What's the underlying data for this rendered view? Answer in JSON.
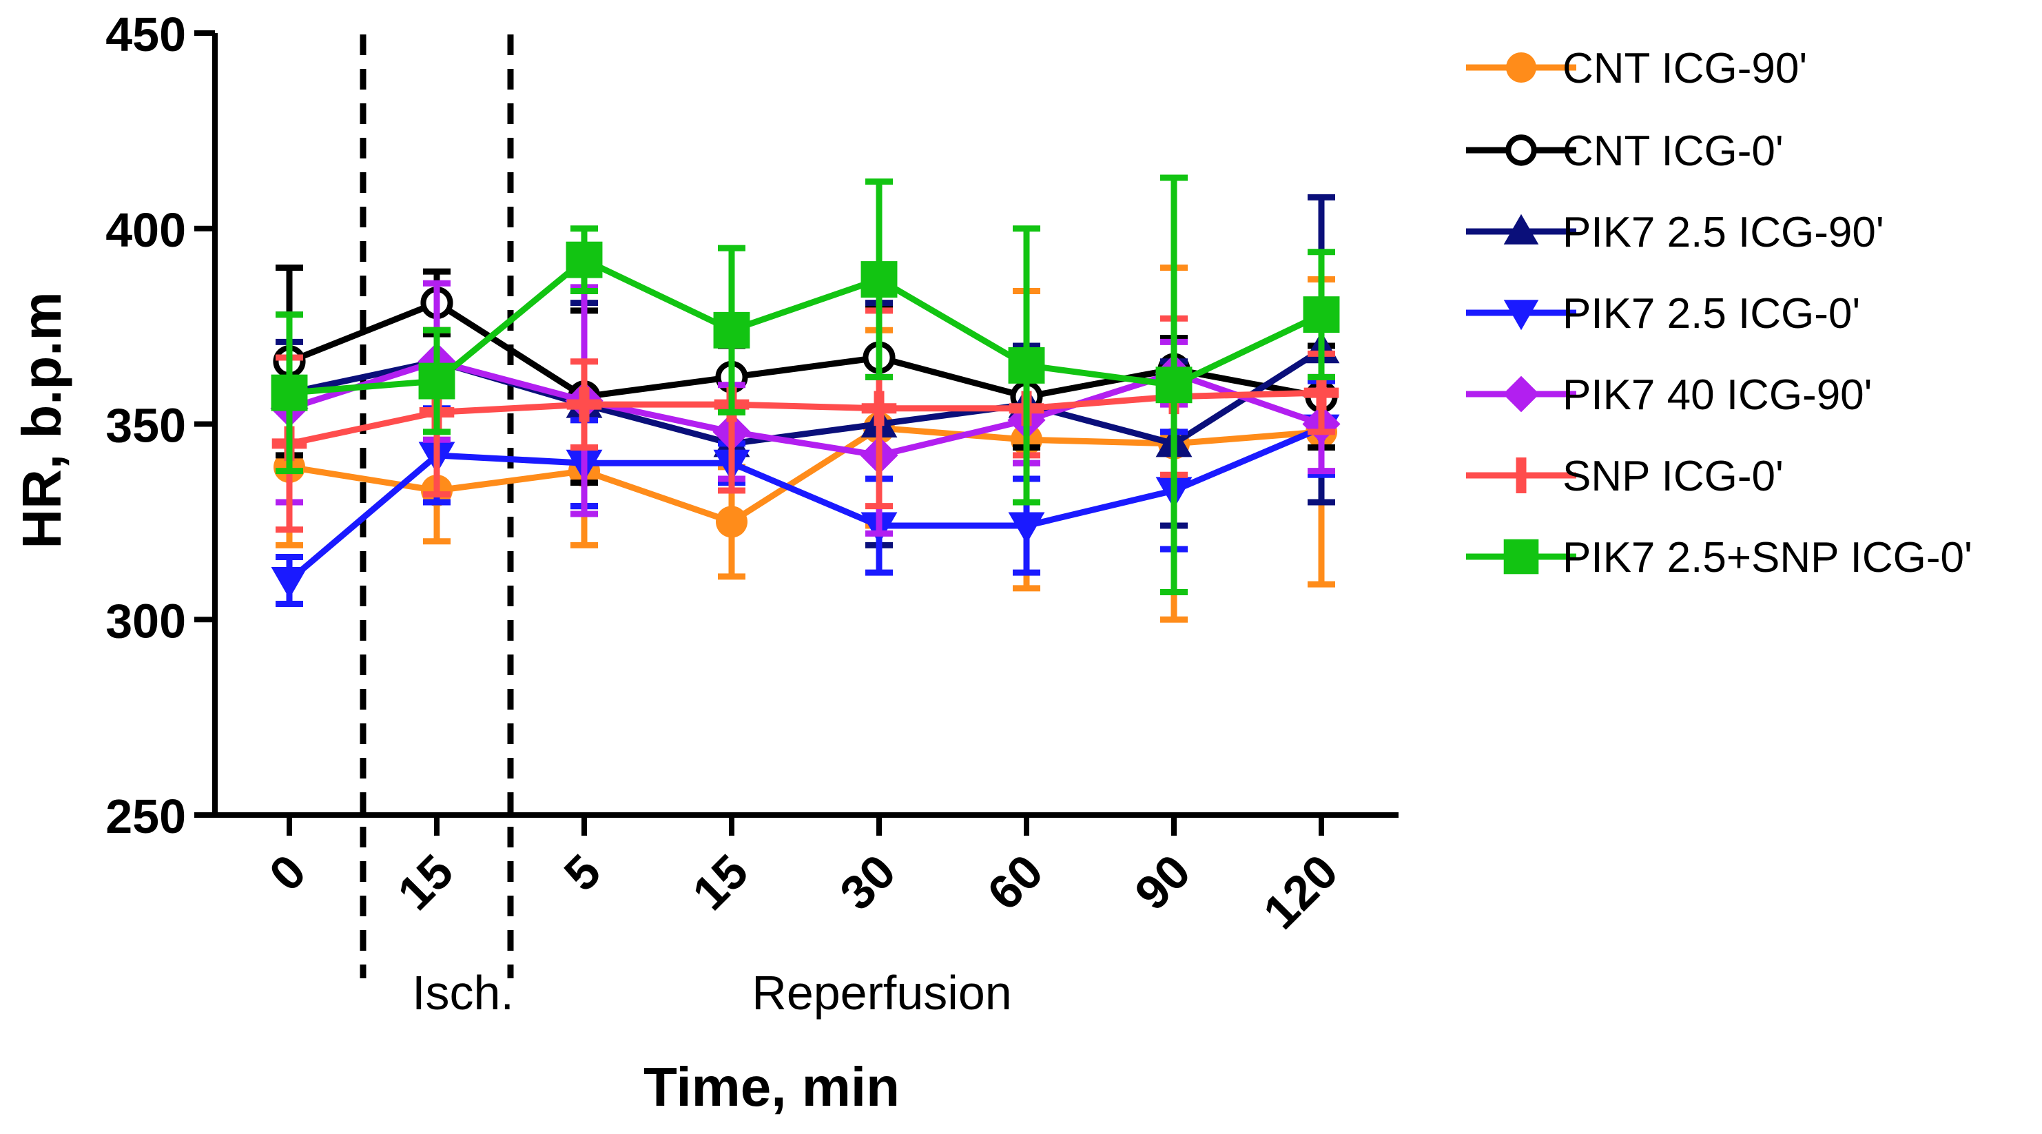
{
  "chart_data": {
    "type": "line",
    "title": "",
    "xlabel": "Time, min",
    "ylabel": "HR, b.p.m",
    "categories": [
      "0",
      "15",
      "5",
      "15",
      "30",
      "60",
      "90",
      "120"
    ],
    "ylim": [
      250,
      450
    ],
    "yticks": [
      250,
      300,
      350,
      400,
      450
    ],
    "grid": false,
    "legend_position": "right",
    "region_labels": [
      "Isch.",
      "Reperfusion"
    ],
    "series": [
      {
        "name": "CNT ICG-90'",
        "color": "#ff8c1a",
        "marker": "circle-filled",
        "values": [
          339,
          333,
          338,
          325,
          349,
          346,
          345,
          348
        ],
        "errors": [
          20,
          13,
          19,
          14,
          25,
          38,
          45,
          39
        ]
      },
      {
        "name": "CNT ICG-0'",
        "color": "#000000",
        "marker": "circle-open",
        "values": [
          366,
          381,
          357,
          362,
          367,
          357,
          364,
          357
        ],
        "errors": [
          24,
          8,
          22,
          8,
          13,
          13,
          8,
          13
        ]
      },
      {
        "name": "PIK7 2.5 ICG-90'",
        "color": "#0a0f7a",
        "marker": "triangle-up",
        "values": [
          358,
          366,
          355,
          345,
          350,
          355,
          345,
          369
        ],
        "errors": [
          13,
          8,
          26,
          10,
          31,
          15,
          21,
          39
        ]
      },
      {
        "name": "PIK7 2.5 ICG-0'",
        "color": "#1a1aff",
        "marker": "triangle-down",
        "values": [
          310,
          342,
          340,
          340,
          324,
          324,
          333,
          349
        ],
        "errors": [
          6,
          12,
          11,
          5,
          12,
          12,
          15,
          12
        ]
      },
      {
        "name": "PIK7 40 ICG-90'",
        "color": "#b21ff0",
        "marker": "diamond",
        "values": [
          354,
          366,
          356,
          348,
          342,
          351,
          363,
          350
        ],
        "errors": [
          24,
          20,
          29,
          12,
          20,
          11,
          8,
          12
        ]
      },
      {
        "name": "SNP ICG-0'",
        "color": "#ff4d4d",
        "marker": "plus",
        "values": [
          345,
          353,
          355,
          355,
          354,
          354,
          357,
          358
        ],
        "errors": [
          22,
          21,
          11,
          22,
          25,
          12,
          20,
          10
        ]
      },
      {
        "name": "PIK7 2.5+SNP ICG-0'",
        "color": "#12c412",
        "marker": "square",
        "values": [
          358,
          361,
          392,
          374,
          387,
          365,
          360,
          378
        ],
        "errors": [
          20,
          13,
          8,
          21,
          25,
          35,
          53,
          16
        ]
      }
    ]
  }
}
